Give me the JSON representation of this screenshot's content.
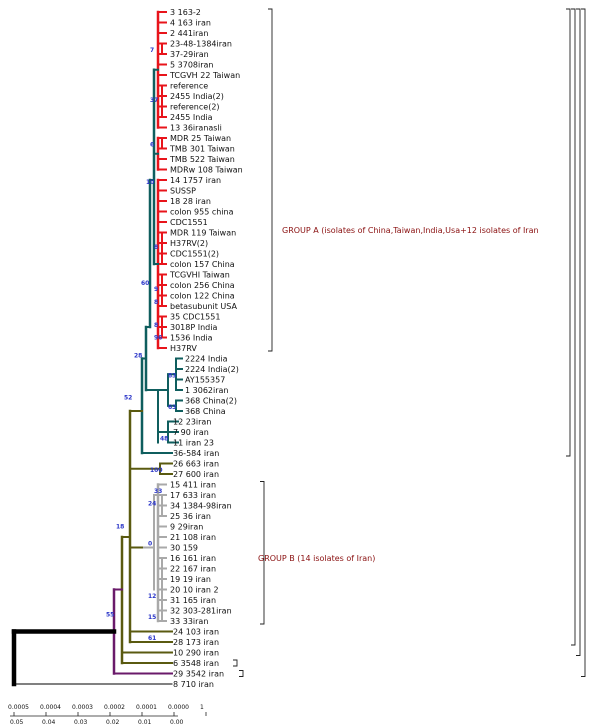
{
  "leaves": [
    "3 163-2",
    "4 163 iran",
    "2 441iran",
    "23-48-1384iran",
    "37-29iran",
    "5 3708iran",
    "TCGVH 22 Taiwan",
    "reference",
    "2455 India(2)",
    "reference(2)",
    "2455 India",
    "13 36iranasli",
    "MDR 25 Taiwan",
    "TMB 301 Taiwan",
    "TMB 522 Taiwan",
    "MDRw 108 Taiwan",
    "14 1757 iran",
    "SUSSP",
    "18 28 iran",
    "colon 955 china",
    "CDC1551",
    "MDR 119 Taiwan",
    "H37RV(2)",
    "CDC1551(2)",
    "colon 157 China",
    "TCGVHI Taiwan",
    "colon 256 China",
    "colon 122 China",
    "betasubunit USA",
    "35 CDC1551",
    "3018P India",
    "1536 India",
    "H37RV",
    "2224 India",
    "2224 India(2)",
    "AY155357",
    "1 3062iran",
    "368 China(2)",
    "368 China",
    "12 23iran",
    "7 90 iran",
    "11 iran 23",
    "36-584 iran",
    "26 663 iran",
    "27 600 iran",
    "15 411 iran",
    "17 633 iran",
    "34 1384-98iran",
    "25 36 iran",
    "9 29iran",
    "21 108 iran",
    "30 159",
    "16 161 iran",
    "22 167 iran",
    "19 19 iran",
    "20 10 iran 2",
    "31 165 iran",
    "32 303-281iran",
    "33 33iran",
    "24 103 iran",
    "28 173 iran",
    "10 290 iran",
    "6 3548 iran",
    "29 3542 iran",
    "8 710 iran"
  ],
  "groups": {
    "a": "GROUP A (isolates of China,Taiwan,India,Usa+12 isolates of Iran",
    "b": "GROUP B (14 isolates of Iran)"
  },
  "bootstrap": [
    {
      "value": "7",
      "leaf": 3.6
    },
    {
      "value": "37",
      "leaf": 8.4
    },
    {
      "value": "6",
      "leaf": 12.6
    },
    {
      "value": "10",
      "leaf": 16.2
    },
    {
      "value": "8",
      "leaf": 22.4
    },
    {
      "value": "60",
      "leaf": 25.8
    },
    {
      "value": "9",
      "leaf": 26.4
    },
    {
      "value": "8",
      "leaf": 27.6
    },
    {
      "value": "8",
      "leaf": 29.8
    },
    {
      "value": "96",
      "leaf": 31.0
    },
    {
      "value": "28",
      "leaf": 32.7
    },
    {
      "value": "83",
      "leaf": 34.6
    },
    {
      "value": "52",
      "leaf": 36.7
    },
    {
      "value": "63",
      "leaf": 37.6
    },
    {
      "value": "48",
      "leaf": 40.6
    },
    {
      "value": "100",
      "leaf": 43.6
    },
    {
      "value": "33",
      "leaf": 45.6
    },
    {
      "value": "24",
      "leaf": 46.8
    },
    {
      "value": "18",
      "leaf": 49.0
    },
    {
      "value": "0",
      "leaf": 50.6
    },
    {
      "value": "12",
      "leaf": 55.6
    },
    {
      "value": "15",
      "leaf": 57.6
    },
    {
      "value": "61",
      "leaf": 59.6
    },
    {
      "value": "55",
      "leaf": 57.4
    }
  ],
  "scale": {
    "top": [
      "0.0005",
      "0.0004",
      "0.0003",
      "0.0002",
      "0.0001",
      "0.0000",
      "1"
    ],
    "bottom": [
      "0.05",
      "0.04",
      "0.03",
      "0.02",
      "0.01",
      "0.00"
    ]
  },
  "colors": {
    "groupA_leaves": "#e8141b",
    "groupA_clade": "#0f5e5e",
    "groupB_leaves": "#a9a9a9",
    "outer_clade": "#5a5a10",
    "purple_clade": "#6a1a6a",
    "root": "#000000",
    "bootstrap": "#2a35c8",
    "group_label": "#8a1010"
  }
}
